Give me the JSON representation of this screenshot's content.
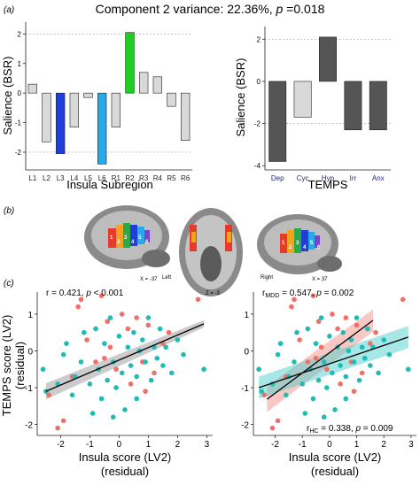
{
  "figure": {
    "title_main": "Component 2  variance: 22.36%, ",
    "title_p": "p",
    "title_tail": " =0.018",
    "panel_a": "(a)",
    "panel_b": "(b)",
    "panel_c": "(c)"
  },
  "chart_data": [
    {
      "type": "bar",
      "id": "insula-subregion-bsr",
      "categories": [
        "L1",
        "L2",
        "L3",
        "L4",
        "L5",
        "L6",
        "R1",
        "R2",
        "R3",
        "R4",
        "R5",
        "R6"
      ],
      "values": [
        0.3,
        -1.65,
        -2.05,
        -1.15,
        -0.15,
        -2.4,
        -1.15,
        2.05,
        0.7,
        0.55,
        -0.45,
        -1.6
      ],
      "colors": [
        "#d9d9d9",
        "#d9d9d9",
        "#1f3fd6",
        "#d9d9d9",
        "#d9d9d9",
        "#29a9e8",
        "#d9d9d9",
        "#22cc22",
        "#d9d9d9",
        "#d9d9d9",
        "#d9d9d9",
        "#d9d9d9"
      ],
      "xlabel": "Insula Subregion",
      "ylabel": "Salience (BSR)",
      "ylim": [
        -2.6,
        2.4
      ],
      "yticks": [
        "-2",
        "-1",
        "0",
        "1",
        "2"
      ],
      "ref_lines": [
        2,
        -2
      ]
    },
    {
      "type": "bar",
      "id": "temps-bsr",
      "categories": [
        "Dep",
        "Cyc",
        "Hyp",
        "Irr",
        "Anx"
      ],
      "values": [
        -3.8,
        -1.7,
        2.1,
        -2.3,
        -2.3
      ],
      "colors": [
        "#555555",
        "#d9d9d9",
        "#555555",
        "#555555",
        "#555555"
      ],
      "xlabel": "TEMPS",
      "ylabel": "Salience (BSR)",
      "ylim": [
        -4.2,
        2.6
      ],
      "yticks": [
        "-4",
        "-2",
        "0",
        "2"
      ],
      "ref_lines": [
        2,
        -2
      ]
    },
    {
      "type": "scatter",
      "id": "temps-vs-insula-combined",
      "xlabel_line1": "Insula score (LV2)",
      "xlabel_line2": "(residual)",
      "ylabel_line1": "TEMPS score (LV2)",
      "ylabel_line2": "(residual)",
      "xlim": [
        -2.8,
        3.2
      ],
      "ylim": [
        -2.3,
        1.6
      ],
      "xticks": [
        "-2",
        "-1",
        "0",
        "1",
        "2",
        "3"
      ],
      "yticks": [
        "-2",
        "-1",
        "0",
        "1"
      ],
      "annotation_prefix": "r = 0.421, ",
      "annotation_p": "p",
      "annotation_tail": " < 0.001",
      "series": [
        {
          "color": "#f07068",
          "points": [
            [
              -1.3,
              1.4
            ],
            [
              -1.4,
              1.2
            ],
            [
              -0.6,
              1.5
            ],
            [
              -0.4,
              0.8
            ],
            [
              0.1,
              1.0
            ],
            [
              0.3,
              0.6
            ],
            [
              0.6,
              0.9
            ],
            [
              1.0,
              0.7
            ],
            [
              1.5,
              0.2
            ],
            [
              1.2,
              -0.6
            ],
            [
              0.8,
              -0.3
            ],
            [
              0.4,
              -0.9
            ],
            [
              -0.1,
              -0.5
            ],
            [
              -0.3,
              0.1
            ],
            [
              -0.8,
              -0.3
            ],
            [
              -1.1,
              0.3
            ],
            [
              -1.6,
              -0.7
            ],
            [
              -2.1,
              -2.1
            ],
            [
              -2.4,
              -1.2
            ],
            [
              2.7,
              1.4
            ],
            [
              0.9,
              -1.1
            ],
            [
              -0.5,
              -0.2
            ],
            [
              1.7,
              0.5
            ],
            [
              -1.9,
              -1.9
            ]
          ]
        },
        {
          "color": "#1fbcb4",
          "points": [
            [
              -2.6,
              -0.5
            ],
            [
              -2.5,
              -1.1
            ],
            [
              -2.1,
              -0.9
            ],
            [
              -1.9,
              -0.1
            ],
            [
              -1.8,
              0.2
            ],
            [
              -1.6,
              -1.2
            ],
            [
              -1.5,
              -0.7
            ],
            [
              -1.3,
              -0.3
            ],
            [
              -1.2,
              0.5
            ],
            [
              -1.0,
              -0.9
            ],
            [
              -0.9,
              -1.7
            ],
            [
              -0.8,
              0.6
            ],
            [
              -0.7,
              -0.5
            ],
            [
              -0.6,
              -1.3
            ],
            [
              -0.5,
              0.2
            ],
            [
              -0.4,
              -0.8
            ],
            [
              -0.3,
              0.9
            ],
            [
              -0.2,
              -0.3
            ],
            [
              -0.1,
              -1.0
            ],
            [
              0.0,
              0.4
            ],
            [
              0.1,
              -0.6
            ],
            [
              0.2,
              -1.6
            ],
            [
              0.3,
              0.1
            ],
            [
              0.4,
              -0.4
            ],
            [
              0.5,
              0.5
            ],
            [
              0.6,
              -0.7
            ],
            [
              0.7,
              0.0
            ],
            [
              0.8,
              0.3
            ],
            [
              0.9,
              -0.3
            ],
            [
              1.0,
              0.9
            ],
            [
              1.1,
              -0.8
            ],
            [
              1.2,
              0.1
            ],
            [
              1.3,
              -0.2
            ],
            [
              1.4,
              0.6
            ],
            [
              1.5,
              -0.4
            ],
            [
              1.6,
              0.1
            ],
            [
              1.8,
              -0.6
            ],
            [
              2.0,
              0.3
            ],
            [
              2.2,
              -0.1
            ],
            [
              2.9,
              -0.5
            ],
            [
              -0.2,
              -1.8
            ],
            [
              0.6,
              -1.3
            ]
          ]
        }
      ],
      "fits": [
        {
          "color": "#000000",
          "band": "#9a9a9a",
          "x0": -2.5,
          "x1": 2.9,
          "slope": 0.34,
          "intercept": -0.25,
          "se0": 0.22,
          "se1": 0.1
        }
      ]
    },
    {
      "type": "scatter",
      "id": "temps-vs-insula-by-group",
      "xlabel_line1": "Insula score (LV2)",
      "xlabel_line2": "(residual)",
      "xlim": [
        -2.8,
        3.2
      ],
      "ylim": [
        -2.3,
        1.6
      ],
      "xticks": [
        "-2",
        "-1",
        "0",
        "1",
        "2",
        "3"
      ],
      "yticks": [
        "-2",
        "-1",
        "0",
        "1"
      ],
      "annotation_mdd_prefix": "r",
      "annotation_mdd_sub": "MDD",
      "annotation_mdd_mid": " = 0.547, ",
      "annotation_mdd_p": "p",
      "annotation_mdd_tail": " = 0.002",
      "annotation_hc_prefix": "r",
      "annotation_hc_sub": "HC",
      "annotation_hc_mid": " = 0.338, ",
      "annotation_hc_p": "p",
      "annotation_hc_tail": " = 0.009",
      "series": [
        {
          "color": "#f07068",
          "points": [
            [
              -1.3,
              1.4
            ],
            [
              -1.4,
              1.2
            ],
            [
              -0.6,
              1.5
            ],
            [
              -0.4,
              0.8
            ],
            [
              0.1,
              1.0
            ],
            [
              0.3,
              0.6
            ],
            [
              0.6,
              0.9
            ],
            [
              1.0,
              0.7
            ],
            [
              1.5,
              0.2
            ],
            [
              1.2,
              -0.6
            ],
            [
              0.8,
              -0.3
            ],
            [
              0.4,
              -0.9
            ],
            [
              -0.1,
              -0.5
            ],
            [
              -0.3,
              0.1
            ],
            [
              -0.8,
              -0.3
            ],
            [
              -1.1,
              0.3
            ],
            [
              -1.6,
              -0.7
            ],
            [
              -2.1,
              -2.1
            ],
            [
              -2.4,
              -1.2
            ],
            [
              2.7,
              1.4
            ],
            [
              0.9,
              -1.1
            ],
            [
              -0.5,
              -0.2
            ],
            [
              1.7,
              0.5
            ],
            [
              -1.9,
              -1.9
            ]
          ]
        },
        {
          "color": "#1fbcb4",
          "points": [
            [
              -2.6,
              -0.5
            ],
            [
              -2.5,
              -1.1
            ],
            [
              -2.1,
              -0.9
            ],
            [
              -1.9,
              -0.1
            ],
            [
              -1.8,
              0.2
            ],
            [
              -1.6,
              -1.2
            ],
            [
              -1.5,
              -0.7
            ],
            [
              -1.3,
              -0.3
            ],
            [
              -1.2,
              0.5
            ],
            [
              -1.0,
              -0.9
            ],
            [
              -0.9,
              -1.7
            ],
            [
              -0.8,
              0.6
            ],
            [
              -0.7,
              -0.5
            ],
            [
              -0.6,
              -1.3
            ],
            [
              -0.5,
              0.2
            ],
            [
              -0.4,
              -0.8
            ],
            [
              -0.3,
              0.9
            ],
            [
              -0.2,
              -0.3
            ],
            [
              -0.1,
              -1.0
            ],
            [
              0.0,
              0.4
            ],
            [
              0.1,
              -0.6
            ],
            [
              0.2,
              -1.6
            ],
            [
              0.3,
              0.1
            ],
            [
              0.4,
              -0.4
            ],
            [
              0.5,
              0.5
            ],
            [
              0.6,
              -0.7
            ],
            [
              0.7,
              0.0
            ],
            [
              0.8,
              0.3
            ],
            [
              0.9,
              -0.3
            ],
            [
              1.0,
              0.9
            ],
            [
              1.1,
              -0.8
            ],
            [
              1.2,
              0.1
            ],
            [
              1.3,
              -0.2
            ],
            [
              1.4,
              0.6
            ],
            [
              1.5,
              -0.4
            ],
            [
              1.6,
              0.1
            ],
            [
              1.8,
              -0.6
            ],
            [
              2.0,
              0.3
            ],
            [
              2.2,
              -0.1
            ],
            [
              2.9,
              -0.5
            ],
            [
              -0.2,
              -1.8
            ],
            [
              0.6,
              -1.3
            ]
          ]
        }
      ],
      "fits": [
        {
          "color": "#000000",
          "band": "#f4908a",
          "x0": -2.3,
          "x1": 1.6,
          "slope": 0.55,
          "intercept": -0.05,
          "se0": 0.35,
          "se1": 0.3
        },
        {
          "color": "#000000",
          "band": "#4fd0cc",
          "x0": -2.6,
          "x1": 2.9,
          "slope": 0.25,
          "intercept": -0.35,
          "se0": 0.3,
          "se1": 0.3
        }
      ]
    }
  ],
  "brain": {
    "left_view_label": "X = -37",
    "left_word": "Left",
    "axial_label": "Z = -3",
    "right_word": "Right",
    "right_view_label": "X = 37",
    "left_nums": [
      "1",
      "2",
      "3",
      "4",
      "5",
      "6"
    ],
    "right_nums": [
      "1",
      "2",
      "3",
      "4",
      "5",
      "6"
    ]
  }
}
